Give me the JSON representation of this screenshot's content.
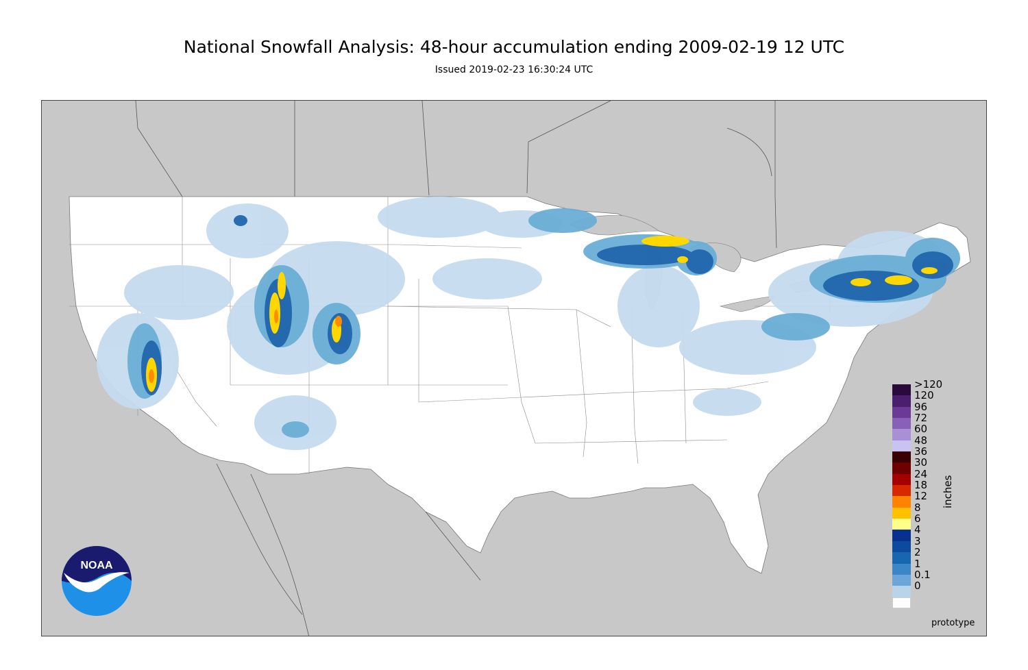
{
  "header": {
    "title": "National Snowfall Analysis: 48-hour accumulation ending 2009-02-19 12 UTC",
    "subtitle": "Issued 2019-02-23 16:30:24 UTC"
  },
  "logo": {
    "text": "NOAA"
  },
  "legend": {
    "units": "inches",
    "items": [
      {
        "label": ">120",
        "color": "#2a0a3a"
      },
      {
        "label": "120",
        "color": "#4b1e6e"
      },
      {
        "label": "96",
        "color": "#6b3a96"
      },
      {
        "label": "72",
        "color": "#8860b8"
      },
      {
        "label": "60",
        "color": "#a88fd6"
      },
      {
        "label": "48",
        "color": "#c9c3f2"
      },
      {
        "label": "36",
        "color": "#3a0000"
      },
      {
        "label": "30",
        "color": "#6e0000"
      },
      {
        "label": "24",
        "color": "#a50000"
      },
      {
        "label": "18",
        "color": "#d82800"
      },
      {
        "label": "12",
        "color": "#ff8200"
      },
      {
        "label": "8",
        "color": "#ffc000"
      },
      {
        "label": "6",
        "color": "#ffff8a"
      },
      {
        "label": "4",
        "color": "#08308f"
      },
      {
        "label": "3",
        "color": "#0c4aa0"
      },
      {
        "label": "2",
        "color": "#1767b0"
      },
      {
        "label": "1",
        "color": "#3a86c6"
      },
      {
        "label": "0.1",
        "color": "#6ca6d9"
      },
      {
        "label": "0",
        "color": "#b9d3e9"
      }
    ],
    "bottom_color": "#ffffff",
    "extra_color": "#dde9f4"
  },
  "footnote": "prototype",
  "colors": {
    "background_gray": "#c8c8c8",
    "land_white": "#ffffff",
    "light_snow": "#c6dbef",
    "med_snow": "#6baed6",
    "heavy_snow": "#2166ac",
    "deep_snow": "#08306b",
    "yellow": "#ffd700",
    "orange": "#ff8c00"
  }
}
